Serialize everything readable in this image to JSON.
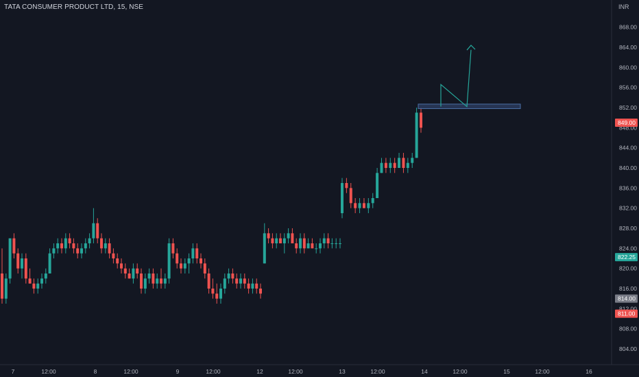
{
  "header": {
    "title": "TATA CONSUMER PRODUCT LTD, 15, NSE",
    "currency": "INR"
  },
  "colors": {
    "background": "#131722",
    "up": "#26a69a",
    "down": "#ef5350",
    "axis_text": "#b2b5be",
    "zone_fill": "#2a3a5c",
    "zone_stroke": "#4a6fa5",
    "arrow": "#26a69a"
  },
  "price_badges": [
    {
      "value": "849.00",
      "price": 849.0,
      "color": "#ef5350"
    },
    {
      "value": "822.25",
      "price": 822.25,
      "color": "#26a69a"
    },
    {
      "value": "814.00",
      "price": 814.0,
      "color": "#787b86"
    },
    {
      "value": "811.00",
      "price": 811.0,
      "color": "#ef5350"
    }
  ],
  "chart_data": {
    "type": "candlestick",
    "title": "TATA CONSUMER PRODUCT LTD, 15, NSE",
    "ylim": [
      802,
      870
    ],
    "yticks": [
      "804.00",
      "808.00",
      "812.00",
      "816.00",
      "820.00",
      "824.00",
      "828.00",
      "832.00",
      "836.00",
      "840.00",
      "844.00",
      "848.00",
      "852.00",
      "856.00",
      "860.00",
      "864.00",
      "868.00"
    ],
    "xticks": [
      "7",
      "12:00",
      "8",
      "12:00",
      "9",
      "12:00",
      "12",
      "12:00",
      "13",
      "12:00",
      "14",
      "12:00",
      "15",
      "12:00",
      "16"
    ],
    "candles": [
      [
        819,
        824,
        813,
        814
      ],
      [
        814,
        819,
        813,
        818
      ],
      [
        818,
        826,
        817,
        826
      ],
      [
        826,
        827,
        822,
        823
      ],
      [
        823,
        824,
        819,
        820
      ],
      [
        820,
        823,
        818,
        822
      ],
      [
        822,
        823,
        817,
        818
      ],
      [
        818,
        820,
        817,
        817
      ],
      [
        817,
        818,
        815,
        816
      ],
      [
        816,
        818,
        815,
        817
      ],
      [
        817,
        819,
        816,
        818
      ],
      [
        818,
        820,
        817,
        819
      ],
      [
        819,
        824,
        819,
        823
      ],
      [
        823,
        825,
        822,
        824
      ],
      [
        824,
        826,
        823,
        825
      ],
      [
        825,
        826,
        823,
        824
      ],
      [
        824,
        827,
        823,
        826
      ],
      [
        826,
        827,
        824,
        825
      ],
      [
        825,
        826,
        823,
        824
      ],
      [
        824,
        825,
        822,
        823
      ],
      [
        823,
        825,
        822,
        824
      ],
      [
        824,
        826,
        823,
        825
      ],
      [
        825,
        827,
        824,
        826
      ],
      [
        826,
        832,
        825,
        829
      ],
      [
        829,
        830,
        825,
        826
      ],
      [
        826,
        827,
        823,
        824
      ],
      [
        824,
        826,
        823,
        825
      ],
      [
        825,
        826,
        822,
        823
      ],
      [
        823,
        824,
        821,
        822
      ],
      [
        822,
        823,
        820,
        821
      ],
      [
        821,
        822,
        819,
        820
      ],
      [
        820,
        821,
        818,
        819
      ],
      [
        819,
        820,
        818,
        818
      ],
      [
        818,
        821,
        817,
        820
      ],
      [
        820,
        821,
        818,
        819
      ],
      [
        819,
        820,
        815,
        816
      ],
      [
        816,
        819,
        815,
        818
      ],
      [
        818,
        820,
        817,
        819
      ],
      [
        819,
        820,
        816,
        817
      ],
      [
        817,
        819,
        816,
        818
      ],
      [
        818,
        820,
        816,
        817
      ],
      [
        817,
        819,
        816,
        818
      ],
      [
        818,
        826,
        817,
        825
      ],
      [
        825,
        826,
        822,
        823
      ],
      [
        823,
        824,
        820,
        821
      ],
      [
        821,
        822,
        819,
        820
      ],
      [
        820,
        822,
        819,
        821
      ],
      [
        821,
        823,
        819,
        822
      ],
      [
        822,
        825,
        821,
        824
      ],
      [
        824,
        825,
        821,
        822
      ],
      [
        822,
        823,
        820,
        821
      ],
      [
        821,
        822,
        818,
        819
      ],
      [
        819,
        820,
        815,
        816
      ],
      [
        816,
        818,
        814,
        815
      ],
      [
        815,
        817,
        813,
        814
      ],
      [
        814,
        817,
        813,
        816
      ],
      [
        816,
        819,
        815,
        818
      ],
      [
        818,
        820,
        817,
        819
      ],
      [
        819,
        820,
        817,
        818
      ],
      [
        818,
        819,
        816,
        817
      ],
      [
        817,
        819,
        816,
        818
      ],
      [
        818,
        819,
        816,
        817
      ],
      [
        817,
        818,
        815,
        816
      ],
      [
        816,
        818,
        815,
        817
      ],
      [
        817,
        818,
        815,
        816
      ],
      [
        816,
        817,
        814,
        815
      ],
      [
        821,
        829,
        821,
        827
      ],
      [
        827,
        828,
        825,
        826
      ],
      [
        826,
        827,
        824,
        825
      ],
      [
        825,
        827,
        824,
        826
      ],
      [
        826,
        827,
        825,
        825
      ],
      [
        825,
        827,
        823,
        826
      ],
      [
        826,
        828,
        825,
        827
      ],
      [
        827,
        828,
        825,
        825
      ],
      [
        825,
        826,
        823,
        824
      ],
      [
        824,
        827,
        823,
        826
      ],
      [
        826,
        827,
        823,
        824
      ],
      [
        824,
        826,
        824,
        825
      ],
      [
        825,
        826,
        824,
        824
      ],
      [
        824,
        825,
        823,
        824
      ],
      [
        824,
        826,
        823,
        825
      ],
      [
        825,
        827,
        824,
        826
      ],
      [
        826,
        827,
        824,
        825
      ],
      [
        825,
        826,
        824,
        825
      ],
      [
        825,
        826,
        824,
        825
      ],
      [
        825,
        826,
        824,
        825
      ],
      [
        831,
        838,
        830,
        837
      ],
      [
        837,
        838,
        835,
        836
      ],
      [
        836,
        837,
        832,
        833
      ],
      [
        833,
        834,
        831,
        832
      ],
      [
        832,
        834,
        831,
        833
      ],
      [
        833,
        834,
        832,
        832
      ],
      [
        832,
        834,
        831,
        833
      ],
      [
        833,
        835,
        832,
        834
      ],
      [
        834,
        840,
        834,
        839
      ],
      [
        839,
        842,
        839,
        841
      ],
      [
        841,
        842,
        839,
        840
      ],
      [
        840,
        842,
        839,
        841
      ],
      [
        841,
        842,
        839,
        840
      ],
      [
        840,
        843,
        840,
        842
      ],
      [
        842,
        843,
        839,
        840
      ],
      [
        840,
        842,
        839,
        841
      ],
      [
        841,
        843,
        840,
        842
      ],
      [
        842,
        852,
        842,
        851
      ],
      [
        851,
        852,
        847,
        848
      ]
    ]
  },
  "annotations": {
    "zone": {
      "price_top": 852.7,
      "price_bottom": 851.8,
      "label": ""
    },
    "arrow_path": [
      [
        853.3,
        857.0
      ],
      [
        852.5,
        864.4
      ]
    ]
  }
}
